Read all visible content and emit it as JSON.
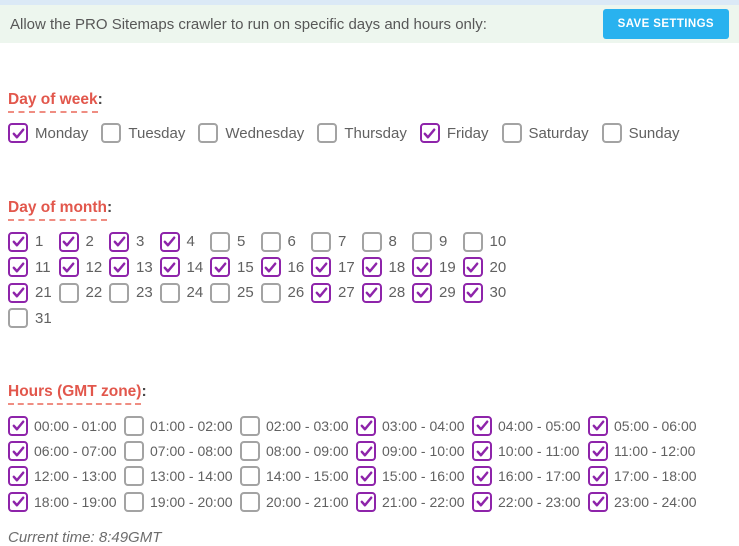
{
  "header": {
    "title": "Allow the PRO Sitemaps crawler to run on specific days and hours only:",
    "save_button_label": "SAVE SETTINGS"
  },
  "colors": {
    "accent_purple": "#8e24aa",
    "heading_red": "#e2574c",
    "button_cyan": "#29b2ef",
    "header_bar_bg": "#edf6ee",
    "top_strip_blue": "#dbe9f6"
  },
  "icons": {
    "checkmark": "checkmark-icon"
  },
  "sections": {
    "day_of_week": {
      "heading": "Day of week",
      "colon": ":",
      "items": [
        {
          "label": "Monday",
          "checked": true
        },
        {
          "label": "Tuesday",
          "checked": false
        },
        {
          "label": "Wednesday",
          "checked": false
        },
        {
          "label": "Thursday",
          "checked": false
        },
        {
          "label": "Friday",
          "checked": true
        },
        {
          "label": "Saturday",
          "checked": false
        },
        {
          "label": "Sunday",
          "checked": false
        }
      ]
    },
    "day_of_month": {
      "heading": "Day of month",
      "colon": ":",
      "items": [
        {
          "label": "1",
          "checked": true
        },
        {
          "label": "2",
          "checked": true
        },
        {
          "label": "3",
          "checked": true
        },
        {
          "label": "4",
          "checked": true
        },
        {
          "label": "5",
          "checked": false
        },
        {
          "label": "6",
          "checked": false
        },
        {
          "label": "7",
          "checked": false
        },
        {
          "label": "8",
          "checked": false
        },
        {
          "label": "9",
          "checked": false
        },
        {
          "label": "10",
          "checked": false
        },
        {
          "label": "11",
          "checked": true
        },
        {
          "label": "12",
          "checked": true
        },
        {
          "label": "13",
          "checked": true
        },
        {
          "label": "14",
          "checked": true
        },
        {
          "label": "15",
          "checked": true
        },
        {
          "label": "16",
          "checked": true
        },
        {
          "label": "17",
          "checked": true
        },
        {
          "label": "18",
          "checked": true
        },
        {
          "label": "19",
          "checked": true
        },
        {
          "label": "20",
          "checked": true
        },
        {
          "label": "21",
          "checked": true
        },
        {
          "label": "22",
          "checked": false
        },
        {
          "label": "23",
          "checked": false
        },
        {
          "label": "24",
          "checked": false
        },
        {
          "label": "25",
          "checked": false
        },
        {
          "label": "26",
          "checked": false
        },
        {
          "label": "27",
          "checked": true
        },
        {
          "label": "28",
          "checked": true
        },
        {
          "label": "29",
          "checked": true
        },
        {
          "label": "30",
          "checked": true
        },
        {
          "label": "31",
          "checked": false
        }
      ]
    },
    "hours": {
      "heading": "Hours (GMT zone)",
      "colon": ":",
      "items": [
        {
          "label": "00:00 - 01:00",
          "checked": true
        },
        {
          "label": "01:00 - 02:00",
          "checked": false
        },
        {
          "label": "02:00 - 03:00",
          "checked": false
        },
        {
          "label": "03:00 - 04:00",
          "checked": true
        },
        {
          "label": "04:00 - 05:00",
          "checked": true
        },
        {
          "label": "05:00 - 06:00",
          "checked": true
        },
        {
          "label": "06:00 - 07:00",
          "checked": true
        },
        {
          "label": "07:00 - 08:00",
          "checked": false
        },
        {
          "label": "08:00 - 09:00",
          "checked": false
        },
        {
          "label": "09:00 - 10:00",
          "checked": true
        },
        {
          "label": "10:00 - 11:00",
          "checked": true
        },
        {
          "label": "11:00 - 12:00",
          "checked": true
        },
        {
          "label": "12:00 - 13:00",
          "checked": true
        },
        {
          "label": "13:00 - 14:00",
          "checked": false
        },
        {
          "label": "14:00 - 15:00",
          "checked": false
        },
        {
          "label": "15:00 - 16:00",
          "checked": true
        },
        {
          "label": "16:00 - 17:00",
          "checked": true
        },
        {
          "label": "17:00 - 18:00",
          "checked": true
        },
        {
          "label": "18:00 - 19:00",
          "checked": true
        },
        {
          "label": "19:00 - 20:00",
          "checked": false
        },
        {
          "label": "20:00 - 21:00",
          "checked": false
        },
        {
          "label": "21:00 - 22:00",
          "checked": true
        },
        {
          "label": "22:00 - 23:00",
          "checked": true
        },
        {
          "label": "23:00 - 24:00",
          "checked": true
        }
      ]
    }
  },
  "footer": {
    "current_time": "Current time: 8:49GMT"
  }
}
